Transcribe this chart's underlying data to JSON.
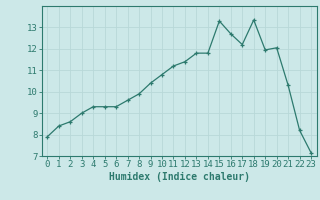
{
  "x": [
    0,
    1,
    2,
    3,
    4,
    5,
    6,
    7,
    8,
    9,
    10,
    11,
    12,
    13,
    14,
    15,
    16,
    17,
    18,
    19,
    20,
    21,
    22,
    23
  ],
  "y": [
    7.9,
    8.4,
    8.6,
    9.0,
    9.3,
    9.3,
    9.3,
    9.6,
    9.9,
    10.4,
    10.8,
    11.2,
    11.4,
    11.8,
    11.8,
    13.3,
    12.7,
    12.2,
    13.35,
    11.95,
    12.05,
    10.3,
    8.2,
    7.15
  ],
  "line_color": "#2d7a6e",
  "marker": "+",
  "bg_color": "#cce8e8",
  "grid_color": "#b8d8d8",
  "xlabel": "Humidex (Indice chaleur)",
  "ylim": [
    7,
    14
  ],
  "xlim": [
    -0.5,
    23.5
  ],
  "yticks": [
    7,
    8,
    9,
    10,
    11,
    12,
    13
  ],
  "xticks": [
    0,
    1,
    2,
    3,
    4,
    5,
    6,
    7,
    8,
    9,
    10,
    11,
    12,
    13,
    14,
    15,
    16,
    17,
    18,
    19,
    20,
    21,
    22,
    23
  ],
  "tick_color": "#2d7a6e",
  "label_fontsize": 6.5,
  "xlabel_fontsize": 7.0
}
